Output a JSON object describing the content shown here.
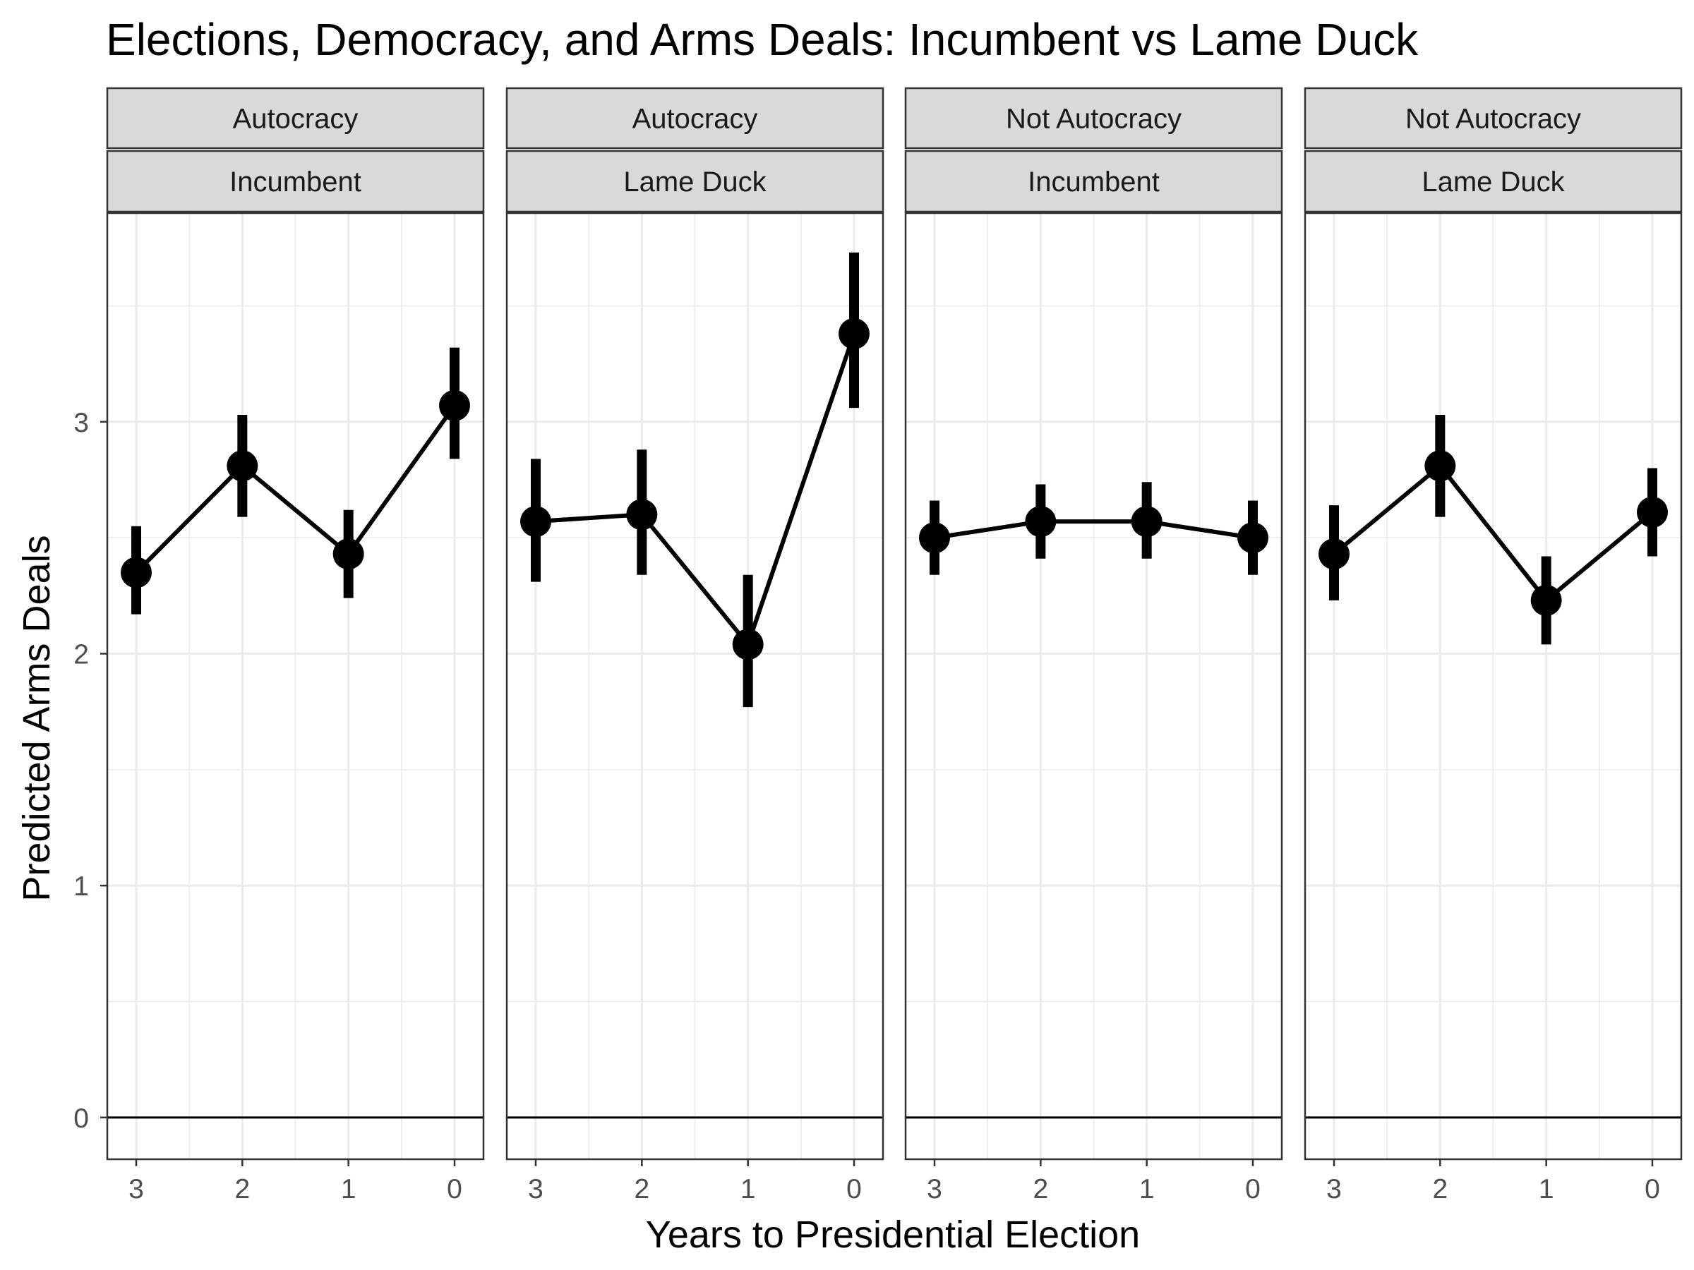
{
  "chart_data": {
    "type": "line",
    "title": "Elections, Democracy, and Arms Deals: Incumbent vs Lame Duck",
    "xlabel": "Years to Presidential Election",
    "ylabel": "Predicted Arms Deals",
    "x": [
      3,
      2,
      1,
      0
    ],
    "x_tick_labels": [
      "3",
      "2",
      "1",
      "0"
    ],
    "x_reversed": true,
    "ylim": [
      -0.18,
      3.9
    ],
    "y_ticks": [
      0,
      1,
      2,
      3
    ],
    "y_tick_labels": [
      "0",
      "1",
      "2",
      "3"
    ],
    "reference_line_y": 0,
    "grid": true,
    "facets": [
      {
        "strip_top": "Autocracy",
        "strip_bottom": "Incumbent",
        "points": [
          {
            "x": 3,
            "y": 2.35,
            "lower": 2.17,
            "upper": 2.55
          },
          {
            "x": 2,
            "y": 2.81,
            "lower": 2.59,
            "upper": 3.03
          },
          {
            "x": 1,
            "y": 2.43,
            "lower": 2.24,
            "upper": 2.62
          },
          {
            "x": 0,
            "y": 3.07,
            "lower": 2.84,
            "upper": 3.32
          }
        ]
      },
      {
        "strip_top": "Autocracy",
        "strip_bottom": "Lame Duck",
        "points": [
          {
            "x": 3,
            "y": 2.57,
            "lower": 2.31,
            "upper": 2.84
          },
          {
            "x": 2,
            "y": 2.6,
            "lower": 2.34,
            "upper": 2.88
          },
          {
            "x": 1,
            "y": 2.04,
            "lower": 1.77,
            "upper": 2.34
          },
          {
            "x": 0,
            "y": 3.38,
            "lower": 3.06,
            "upper": 3.73
          }
        ]
      },
      {
        "strip_top": "Not Autocracy",
        "strip_bottom": "Incumbent",
        "points": [
          {
            "x": 3,
            "y": 2.5,
            "lower": 2.34,
            "upper": 2.66
          },
          {
            "x": 2,
            "y": 2.57,
            "lower": 2.41,
            "upper": 2.73
          },
          {
            "x": 1,
            "y": 2.57,
            "lower": 2.41,
            "upper": 2.74
          },
          {
            "x": 0,
            "y": 2.5,
            "lower": 2.34,
            "upper": 2.66
          }
        ]
      },
      {
        "strip_top": "Not Autocracy",
        "strip_bottom": "Lame Duck",
        "points": [
          {
            "x": 3,
            "y": 2.43,
            "lower": 2.23,
            "upper": 2.64
          },
          {
            "x": 2,
            "y": 2.81,
            "lower": 2.59,
            "upper": 3.03
          },
          {
            "x": 1,
            "y": 2.23,
            "lower": 2.04,
            "upper": 2.42
          },
          {
            "x": 0,
            "y": 2.61,
            "lower": 2.42,
            "upper": 2.8
          }
        ]
      }
    ]
  }
}
